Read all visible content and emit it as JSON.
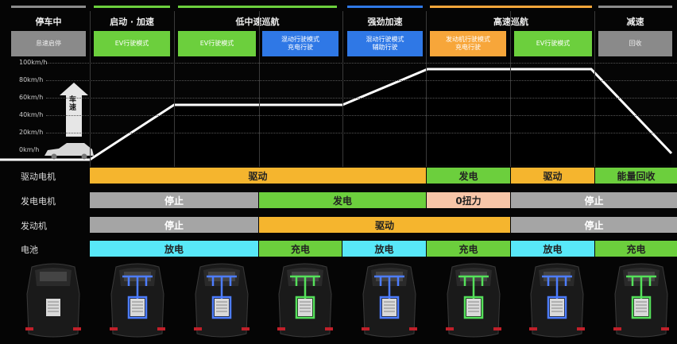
{
  "colors": {
    "gray_bar": "#8c8c8c",
    "green": "#6ccf3d",
    "blue": "#2f78e6",
    "orange": "#f7a63a",
    "yellow": "#f5b52e",
    "peach": "#f7c5a8",
    "cyan": "#58e8f8",
    "mid_gray": "#a5a5a5"
  },
  "phases": [
    {
      "title": "停车中",
      "bar_color": "#8c8c8c"
    },
    {
      "title": "启动 · 加速",
      "bar_color": "#6ccf3d"
    },
    {
      "title": "低中速巡航",
      "bar_color": "#6ccf3d"
    },
    {
      "title": "强劲加速",
      "bar_color": "#2f78e6"
    },
    {
      "title": "高速巡航",
      "bar_color": "#f7a63a"
    },
    {
      "title": "减速",
      "bar_color": "#8c8c8c"
    }
  ],
  "modes": [
    {
      "label": "怠速启停",
      "color": "#8a8a8a"
    },
    {
      "label": "EV行驶模式",
      "color": "#6ccf3d"
    },
    {
      "label": "EV行驶模式",
      "color": "#6ccf3d"
    },
    {
      "label": "混动行驶模式\n充电行驶",
      "color": "#2f78e6"
    },
    {
      "label": "混动行驶模式\n辅助行驶",
      "color": "#2f78e6"
    },
    {
      "label": "发动机行驶模式\n充电行驶",
      "color": "#f7a63a"
    },
    {
      "label": "EV行驶模式",
      "color": "#6ccf3d"
    },
    {
      "label": "回收",
      "color": "#8a8a8a"
    }
  ],
  "speed_axis": [
    "100km/h",
    "80km/h",
    "60km/h",
    "40km/h",
    "20km/h",
    "0km/h"
  ],
  "speed_arrow_label": "车速",
  "rows": [
    {
      "label": "驱动电机",
      "segments": [
        {
          "text": "驱动",
          "color": "#f5b52e"
        },
        {
          "text": "发电",
          "color": "#6ccf3d"
        },
        {
          "text": "驱动",
          "color": "#f5b52e"
        },
        {
          "text": "能量回收",
          "color": "#6ccf3d"
        }
      ]
    },
    {
      "label": "发电电机",
      "segments": [
        {
          "text": "停止",
          "color": "#a5a5a5"
        },
        {
          "text": "发电",
          "color": "#6ccf3d"
        },
        {
          "text": "0扭力",
          "color": "#f7c5a8"
        },
        {
          "text": "停止",
          "color": "#a5a5a5"
        }
      ]
    },
    {
      "label": "发动机",
      "segments": [
        {
          "text": "停止",
          "color": "#a5a5a5"
        },
        {
          "text": "驱动",
          "color": "#f5b52e"
        },
        {
          "text": "停止",
          "color": "#a5a5a5"
        }
      ]
    },
    {
      "label": "电池",
      "segments": [
        {
          "text": "放电",
          "color": "#58e8f8"
        },
        {
          "text": "充电",
          "color": "#6ccf3d"
        },
        {
          "text": "放电",
          "color": "#58e8f8"
        },
        {
          "text": "充电",
          "color": "#6ccf3d"
        },
        {
          "text": "放电",
          "color": "#58e8f8"
        },
        {
          "text": "充电",
          "color": "#6ccf3d"
        }
      ]
    }
  ],
  "car_states": [
    {
      "state": "idle"
    },
    {
      "state": "discharge"
    },
    {
      "state": "discharge"
    },
    {
      "state": "charge"
    },
    {
      "state": "discharge"
    },
    {
      "state": "charge"
    },
    {
      "state": "discharge"
    },
    {
      "state": "charge"
    }
  ]
}
